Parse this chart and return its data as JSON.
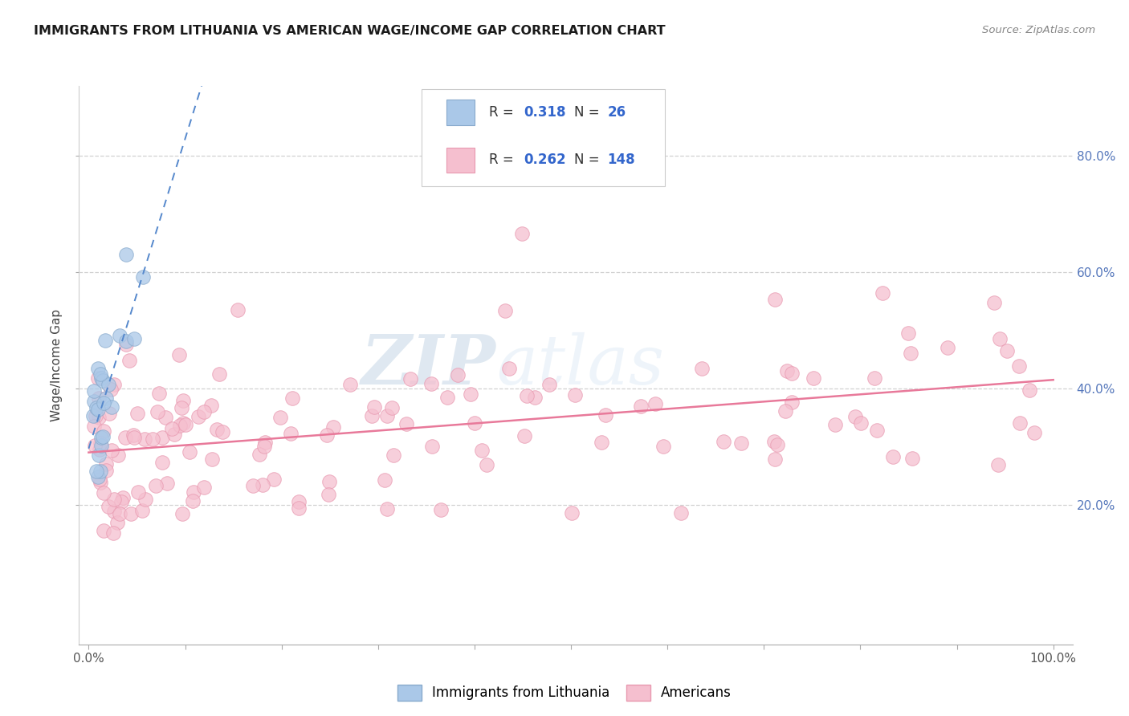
{
  "title": "IMMIGRANTS FROM LITHUANIA VS AMERICAN WAGE/INCOME GAP CORRELATION CHART",
  "source": "Source: ZipAtlas.com",
  "ylabel": "Wage/Income Gap",
  "xlim": [
    0.0,
    1.0
  ],
  "ylim": [
    0.0,
    0.9
  ],
  "xticklabels": [
    "0.0%",
    "",
    "",
    "",
    "",
    "",
    "",
    "",
    "",
    "",
    "100.0%"
  ],
  "ytick_vals": [
    0.2,
    0.4,
    0.6,
    0.8
  ],
  "yticklabels": [
    "20.0%",
    "40.0%",
    "60.0%",
    "80.0%"
  ],
  "legend_blue_label": "Immigrants from Lithuania",
  "legend_pink_label": "Americans",
  "blue_R": 0.318,
  "blue_N": 26,
  "pink_R": 0.262,
  "pink_N": 148,
  "blue_color": "#aac8e8",
  "blue_edge": "#88aacc",
  "pink_color": "#f5bfcf",
  "pink_edge": "#e899b0",
  "blue_line_color": "#5588cc",
  "pink_line_color": "#e8799a",
  "watermark_zip": "ZIP",
  "watermark_atlas": "atlas",
  "blue_line_intercept": 0.305,
  "blue_line_slope": 5.0,
  "pink_line_intercept": 0.285,
  "pink_line_slope": 0.12
}
